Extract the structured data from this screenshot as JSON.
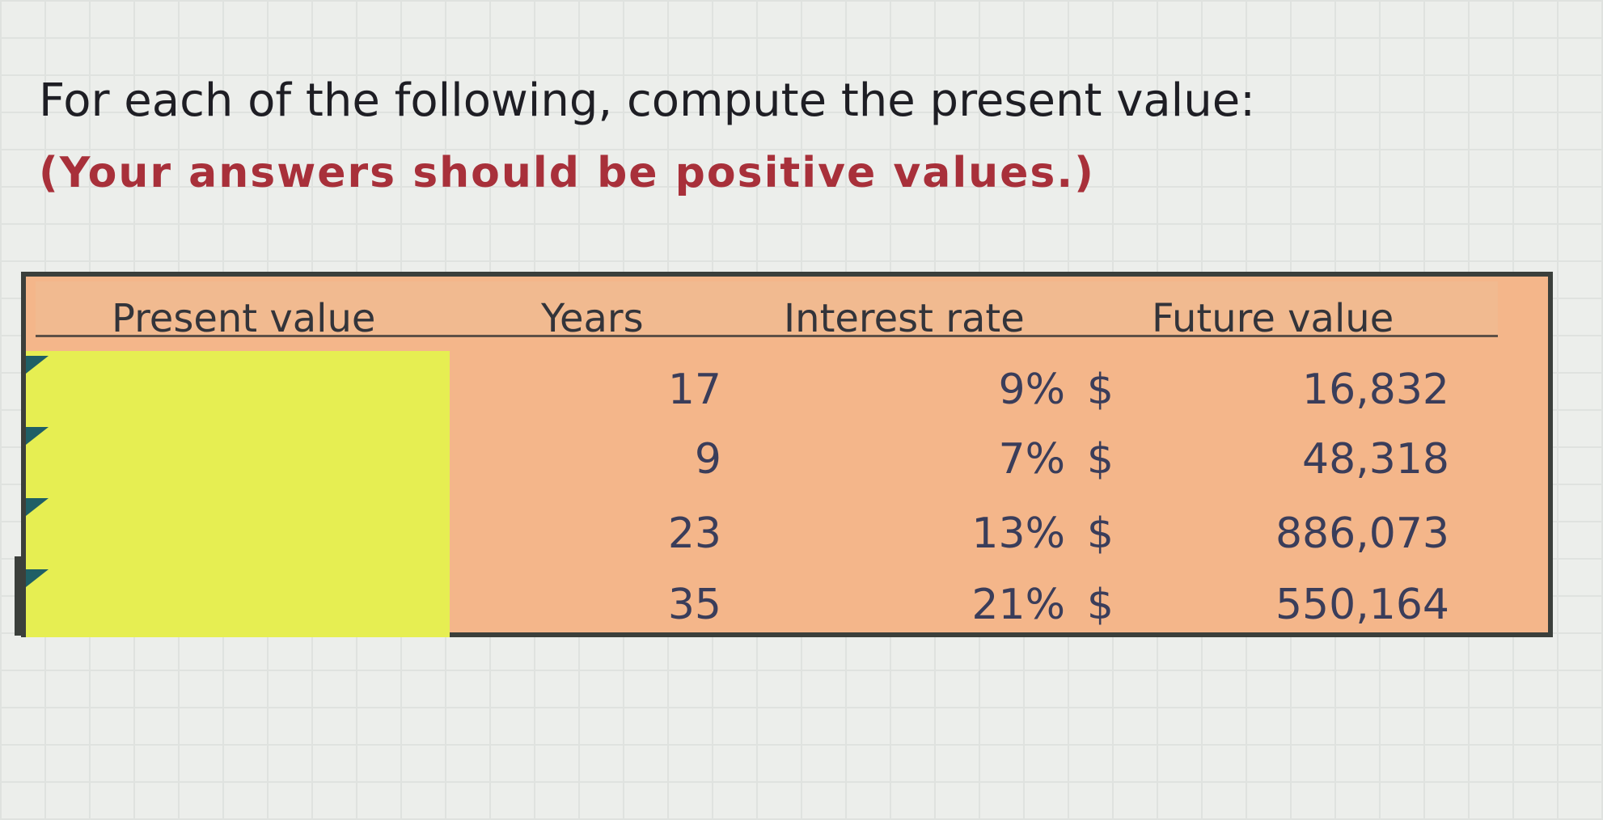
{
  "instruction": "For each of the following, compute the present value:",
  "note": "(Your answers should be positive values.)",
  "table": {
    "headers": [
      "Present value",
      "Years",
      "Interest rate",
      "Future value"
    ],
    "currency_symbol": "$",
    "rows": [
      {
        "present_value": "",
        "years": "17",
        "rate": "9%",
        "future_value": "16,832"
      },
      {
        "present_value": "",
        "years": "9",
        "rate": "7%",
        "future_value": "48,318"
      },
      {
        "present_value": "",
        "years": "23",
        "rate": "13%",
        "future_value": "886,073"
      },
      {
        "present_value": "",
        "years": "35",
        "rate": "21%",
        "future_value": "550,164"
      }
    ]
  },
  "colors": {
    "input_cell": "#e6ee52",
    "table_fill": "#f4b68a",
    "note_text": "#a8303a"
  }
}
